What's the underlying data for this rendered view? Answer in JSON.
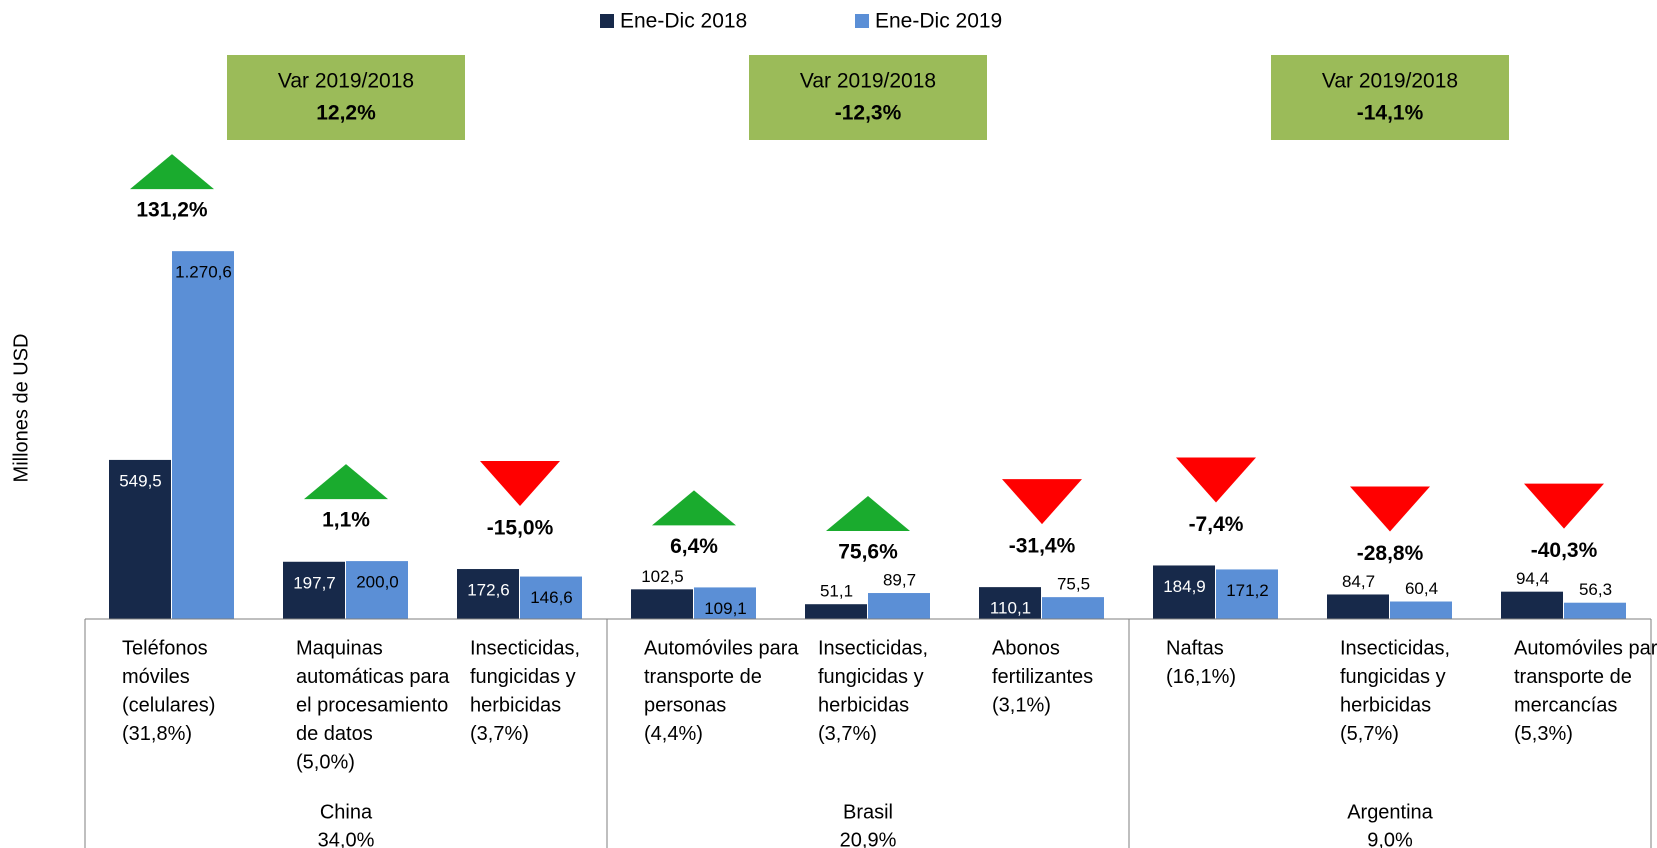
{
  "chart_data": {
    "type": "bar",
    "y_label": "Millones de USD",
    "ylim": [
      0,
      2000
    ],
    "series": [
      {
        "name": "Ene-Dic 2018",
        "color": "#17294a",
        "values": [
          549.5,
          197.7,
          172.6,
          102.5,
          51.1,
          110.1,
          184.9,
          84.7,
          94.4
        ],
        "value_labels": [
          "549,5",
          "197,7",
          "172,6",
          "102,5",
          "51,1",
          "110,1",
          "184,9",
          "84,7",
          "94,4"
        ]
      },
      {
        "name": "Ene-Dic 2019",
        "color": "#5b8fd6",
        "values": [
          1270.6,
          200.0,
          146.6,
          109.1,
          89.7,
          75.5,
          171.2,
          60.4,
          56.3
        ],
        "value_labels": [
          "1.270,6",
          "200,0",
          "146,6",
          "109,1",
          "89,7",
          "75,5",
          "171,2",
          "60,4",
          "56,3"
        ]
      }
    ],
    "changes": [
      131.2,
      1.1,
      -15.0,
      6.4,
      75.6,
      -31.4,
      -7.4,
      -28.8,
      -40.3
    ],
    "change_labels": [
      "131,2%",
      "1,1%",
      "-15,0%",
      "6,4%",
      "75,6%",
      "-31,4%",
      "-7,4%",
      "-28,8%",
      "-40,3%"
    ],
    "groups": [
      {
        "name": "China",
        "share": 34.0,
        "share_label": "34,0%",
        "var_title": "Var 2019/2018",
        "var": 12.2,
        "var_label": "12,2%",
        "categories": [
          [
            "Teléfonos",
            "móviles",
            "(celulares)",
            "(31,8%)"
          ],
          [
            "Maquinas",
            "automáticas para",
            "el procesamiento",
            "de datos",
            "(5,0%)"
          ],
          [
            "Insecticidas,",
            "fungicidas y",
            "herbicidas",
            "(3,7%)"
          ]
        ]
      },
      {
        "name": "Brasil",
        "share": 20.9,
        "share_label": "20,9%",
        "var_title": "Var 2019/2018",
        "var": -12.3,
        "var_label": "-12,3%",
        "categories": [
          [
            "Automóviles para",
            "transporte de",
            "personas",
            "(4,4%)"
          ],
          [
            "Insecticidas,",
            "fungicidas y",
            "herbicidas",
            "(3,7%)"
          ],
          [
            "Abonos",
            "fertilizantes",
            "(3,1%)"
          ]
        ]
      },
      {
        "name": "Argentina",
        "share": 9.0,
        "share_label": "9,0%",
        "var_title": "Var 2019/2018",
        "var": -14.1,
        "var_label": "-14,1%",
        "categories": [
          [
            "Naftas",
            "(16,1%)"
          ],
          [
            "Insecticidas,",
            "fungicidas y",
            "herbicidas",
            "(5,7%)"
          ],
          [
            "Automóviles para",
            "transporte de",
            "mercancías",
            "(5,3%)"
          ]
        ]
      }
    ]
  }
}
